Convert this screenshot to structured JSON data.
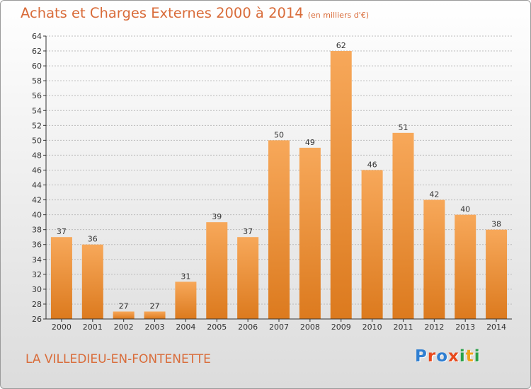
{
  "title": "Achats et Charges Externes 2000 à 2014",
  "title_unit": "(en milliers d'€)",
  "region_name": "LA VILLEDIEU-EN-FONTENETTE",
  "logo_text": "Proxiti",
  "logo_colors": [
    "#2f7fd2",
    "#e8491d",
    "#2f7fd2",
    "#e8491d",
    "#2aa14a",
    "#f0a21b",
    "#2aa14a"
  ],
  "colors": {
    "title": "#d96c3a",
    "bar_light": "#f7a85a",
    "bar_dark": "#dc7a1e",
    "axis": "#333333",
    "grid": "#bbbbbb"
  },
  "chart_data": {
    "type": "bar",
    "categories": [
      "2000",
      "2001",
      "2002",
      "2003",
      "2004",
      "2005",
      "2006",
      "2007",
      "2008",
      "2009",
      "2010",
      "2011",
      "2012",
      "2013",
      "2014"
    ],
    "values": [
      37,
      36,
      27,
      27,
      31,
      39,
      37,
      50,
      49,
      62,
      46,
      51,
      42,
      40,
      38
    ],
    "ylim": [
      26,
      64
    ],
    "yticks": [
      26,
      28,
      30,
      32,
      34,
      36,
      38,
      40,
      42,
      44,
      46,
      48,
      50,
      52,
      54,
      56,
      58,
      60,
      62,
      64
    ],
    "grid": true,
    "data_labels": true
  }
}
